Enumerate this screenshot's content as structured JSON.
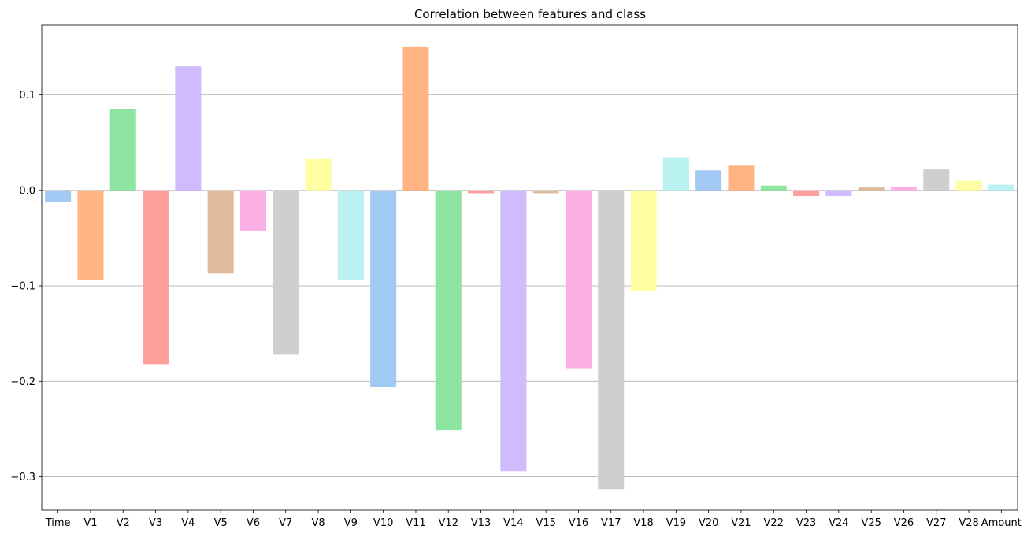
{
  "chart_data": {
    "type": "bar",
    "title": "Correlation between features and class",
    "xlabel": "",
    "ylabel": "",
    "ylim": [
      -0.335,
      0.173
    ],
    "y_ticks": [
      0.1,
      0.0,
      -0.1,
      -0.2,
      -0.3
    ],
    "y_tick_labels": [
      "0.1",
      "0.0",
      "−0.1",
      "−0.2",
      "−0.3"
    ],
    "grid": "horizontal",
    "palette": "pastel",
    "categories": [
      "Time",
      "V1",
      "V2",
      "V3",
      "V4",
      "V5",
      "V6",
      "V7",
      "V8",
      "V9",
      "V10",
      "V11",
      "V12",
      "V13",
      "V14",
      "V15",
      "V16",
      "V17",
      "V18",
      "V19",
      "V20",
      "V21",
      "V22",
      "V23",
      "V24",
      "V25",
      "V26",
      "V27",
      "V28",
      "Amount"
    ],
    "values": [
      -0.012,
      -0.094,
      0.085,
      -0.182,
      0.13,
      -0.087,
      -0.043,
      -0.172,
      0.033,
      -0.094,
      -0.206,
      0.15,
      -0.251,
      -0.003,
      -0.294,
      -0.003,
      -0.187,
      -0.313,
      -0.105,
      0.034,
      0.021,
      0.026,
      0.005,
      -0.006,
      -0.006,
      0.003,
      0.004,
      0.022,
      0.01,
      0.006
    ],
    "colors": [
      "#a1c9f4",
      "#ffb482",
      "#8de5a1",
      "#ff9f9b",
      "#d0bbff",
      "#debb9b",
      "#fab0e4",
      "#cfcfcf",
      "#fffea3",
      "#b9f2f0",
      "#a1c9f4",
      "#ffb482",
      "#8de5a1",
      "#ff9f9b",
      "#d0bbff",
      "#debb9b",
      "#fab0e4",
      "#cfcfcf",
      "#fffea3",
      "#b9f2f0",
      "#a1c9f4",
      "#ffb482",
      "#8de5a1",
      "#ff9f9b",
      "#d0bbff",
      "#debb9b",
      "#fab0e4",
      "#cfcfcf",
      "#fffea3",
      "#b9f2f0"
    ]
  }
}
